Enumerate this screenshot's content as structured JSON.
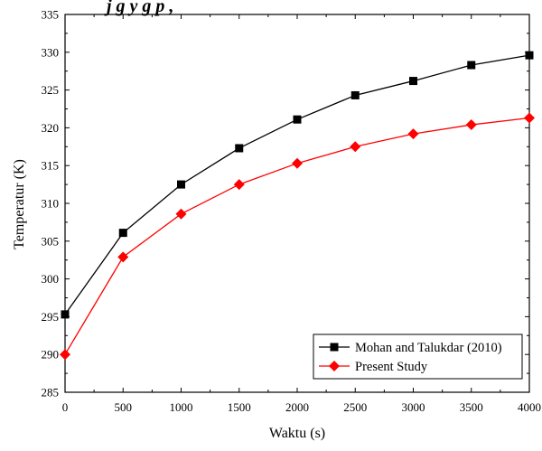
{
  "chart_data": {
    "type": "line",
    "title_partial": "j       g        y g p      ,",
    "xlabel": "Waktu (s)",
    "ylabel": "Temperatur (K)",
    "xlim": [
      0,
      4000
    ],
    "ylim": [
      285,
      335
    ],
    "x_ticks": [
      0,
      500,
      1000,
      1500,
      2000,
      2500,
      3000,
      3500,
      4000
    ],
    "y_ticks": [
      285,
      290,
      295,
      300,
      305,
      310,
      315,
      320,
      325,
      330,
      335
    ],
    "grid": false,
    "legend_position": "bottom-right",
    "x": [
      0,
      500,
      1000,
      1500,
      2000,
      2500,
      3000,
      3500,
      4000
    ],
    "series": [
      {
        "name": "Mohan and Talukdar (2010)",
        "color": "#000000",
        "marker": "square",
        "values": [
          295.3,
          306.1,
          312.5,
          317.3,
          321.1,
          324.3,
          326.2,
          328.3,
          329.6
        ]
      },
      {
        "name": "Present Study",
        "color": "#ff0000",
        "marker": "diamond",
        "values": [
          290.0,
          302.9,
          308.6,
          312.5,
          315.3,
          317.5,
          319.2,
          320.4,
          321.3
        ]
      }
    ]
  }
}
